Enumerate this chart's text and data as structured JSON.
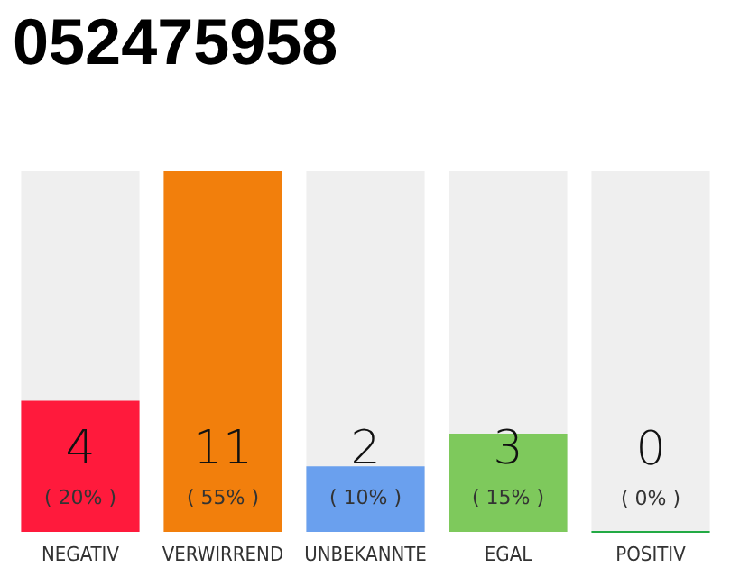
{
  "chart_data": {
    "type": "bar",
    "title": "052475958",
    "categories": [
      "NEGATIV",
      "VERWIRREND",
      "UNBEKANNTE",
      "EGAL",
      "POSITIV"
    ],
    "values": [
      4,
      11,
      2,
      3,
      0
    ],
    "colors": [
      "#ff1a3c",
      "#f27f0c",
      "#6aa0ee",
      "#7ec95c",
      "#22aa44"
    ],
    "value_labels": [
      "4\n( 20% )",
      "11\n( 55% )",
      "2\n( 10% )",
      "3\n( 15% )",
      "0\n( 0% )"
    ]
  }
}
